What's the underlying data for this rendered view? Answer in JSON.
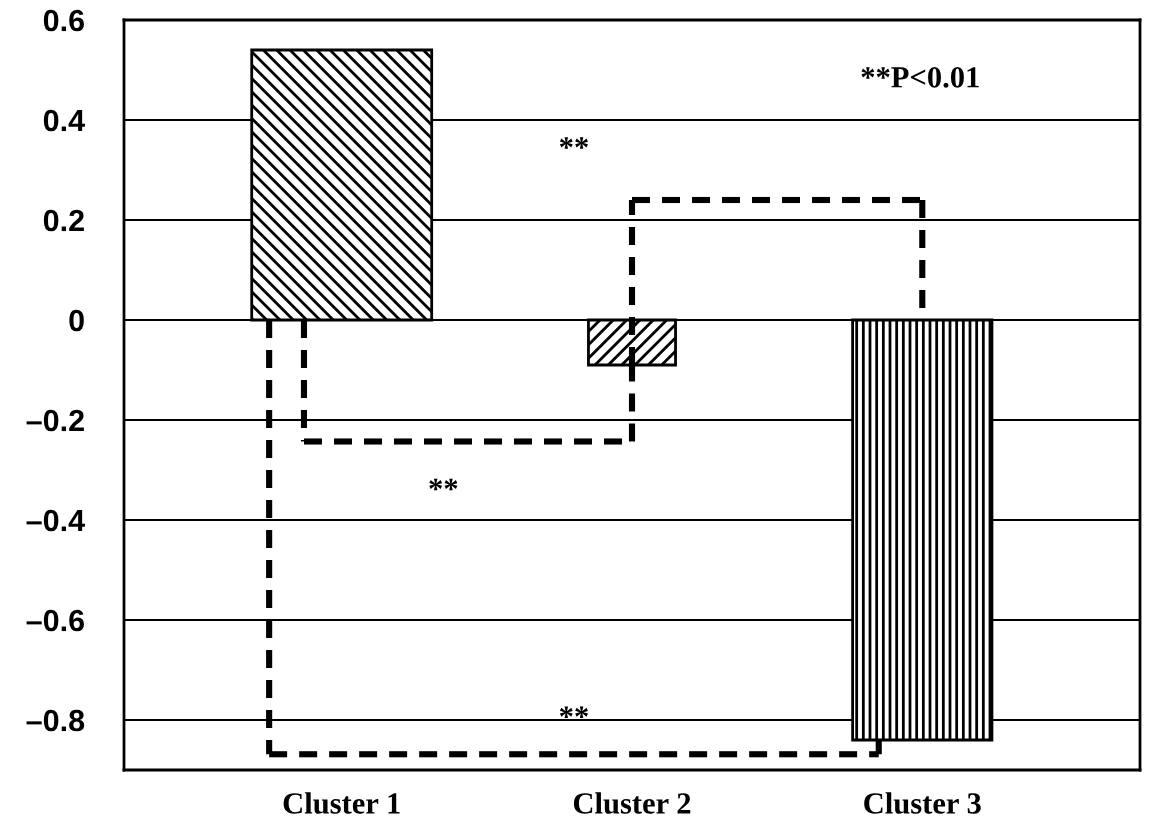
{
  "chart_data": {
    "type": "bar",
    "categories": [
      "Cluster 1",
      "Cluster 2",
      "Cluster 3"
    ],
    "values": [
      0.54,
      -0.09,
      -0.84
    ],
    "colors": [
      "#000000",
      "#000000",
      "#000000"
    ],
    "ylim": [
      -0.9,
      0.6
    ],
    "yticks": [
      0.6,
      0.4,
      0.2,
      {
        "value": 0,
        "label": "0"
      },
      {
        "value": -0.2,
        "label": "–0.2"
      },
      {
        "value": -0.4,
        "label": "–0.4"
      },
      {
        "value": -0.6,
        "label": "–0.6"
      },
      {
        "value": -0.8,
        "label": "–0.8"
      }
    ],
    "grid": "y",
    "annotations": [
      "**",
      "**",
      "**",
      "**P<0.01"
    ]
  }
}
